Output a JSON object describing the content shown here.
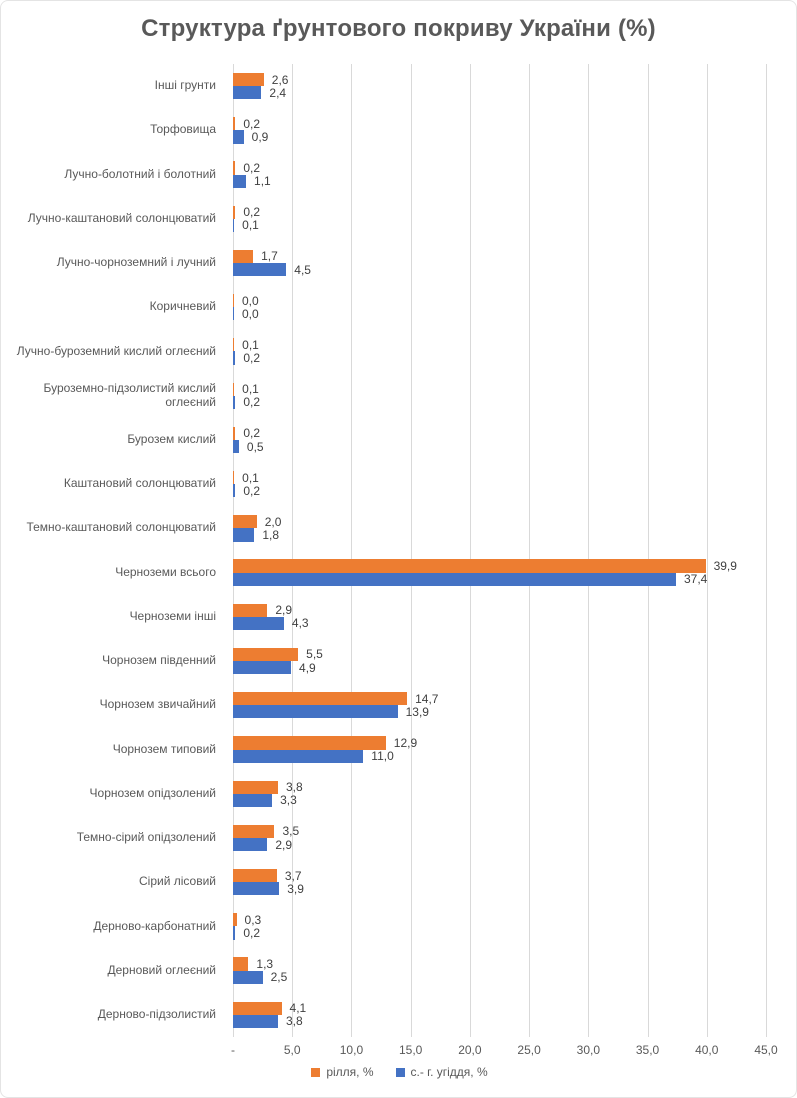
{
  "chart_data": {
    "type": "bar",
    "orientation": "horizontal",
    "title": "Структура ґрунтового покриву України (%)",
    "categories": [
      "Інші грунти",
      "Торфовища",
      "Лучно-болотний і болотний",
      "Лучно-каштановий солонцюватий",
      "Лучно-чорноземний і лучний",
      "Коричневий",
      "Лучно-буроземний кислий оглеєний",
      "Буроземно-підзолистий кислий оглеєний",
      "Бурозем кислий",
      "Каштановий солонцюватий",
      "Темно-каштановий солонцюватий",
      "Черноземи всього",
      "Черноземи інші",
      "Чорнозем південний",
      "Чорнозем звичайний",
      "Чорнозем типовий",
      "Чорнозем опідзолений",
      "Темно-сірий опідзолений",
      "Сірий лісовий",
      "Дерново-карбонатний",
      "Дерновий оглеєний",
      "Дерново-підзолистий"
    ],
    "series": [
      {
        "name": "рілля, %",
        "color": "#ED7D31",
        "values": [
          2.6,
          0.2,
          0.2,
          0.2,
          1.7,
          0.0,
          0.1,
          0.1,
          0.2,
          0.1,
          2.0,
          39.9,
          2.9,
          5.5,
          14.7,
          12.9,
          3.8,
          3.5,
          3.7,
          0.3,
          1.3,
          4.1
        ]
      },
      {
        "name": "с.- г. угіддя, %",
        "color": "#4472C4",
        "values": [
          2.4,
          0.9,
          1.1,
          0.1,
          4.5,
          0.0,
          0.2,
          0.2,
          0.5,
          0.2,
          1.8,
          37.4,
          4.3,
          4.9,
          13.9,
          11.0,
          3.3,
          2.9,
          3.9,
          0.2,
          2.5,
          3.8
        ]
      }
    ],
    "xlim": [
      0,
      45
    ],
    "x_tick_step": 5,
    "x_ticks": [
      "-",
      "5,0",
      "10,0",
      "15,0",
      "20,0",
      "25,0",
      "30,0",
      "35,0",
      "40,0",
      "45,0"
    ],
    "grid": true,
    "gridline_color": "#D9D9D9",
    "title_color": "#595959",
    "axis_text_color": "#595959",
    "value_label_color": "#404040",
    "decimal_separator": ",",
    "value_labels": true,
    "legend_position": "bottom"
  }
}
